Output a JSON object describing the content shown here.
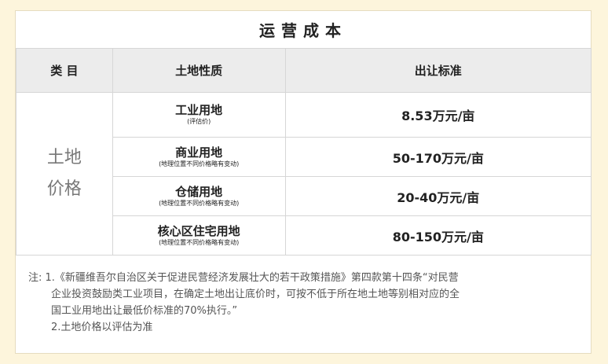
{
  "title": "运营成本",
  "headers": [
    "类 目",
    "土地性质",
    "出让标准"
  ],
  "category": [
    "土地",
    "价格"
  ],
  "rows": [
    {
      "name": "工业用地",
      "note": "(评估价)",
      "price": "8.53万元/亩"
    },
    {
      "name": "商业用地",
      "note": "(地理位置不同价格略有变动)",
      "price": "50-170万元/亩"
    },
    {
      "name": "仓储用地",
      "note": "(地理位置不同价格略有变动)",
      "price": "20-40万元/亩"
    },
    {
      "name": "核心区住宅用地",
      "note": "(地理位置不同价格略有变动)",
      "price": "80-150万元/亩"
    }
  ],
  "notes": {
    "label": "注: ",
    "lines": [
      "1.《新疆维吾尔自治区关于促进民营经济发展壮大的若干政策措施》第四款第十四条“对民营",
      "企业投资鼓励类工业项目，在确定土地出让底价时，可按不低于所在地土地等别相对应的全",
      "国工业用地出让最低价标准的70%执行。”",
      "2.土地价格以评估为准"
    ]
  }
}
